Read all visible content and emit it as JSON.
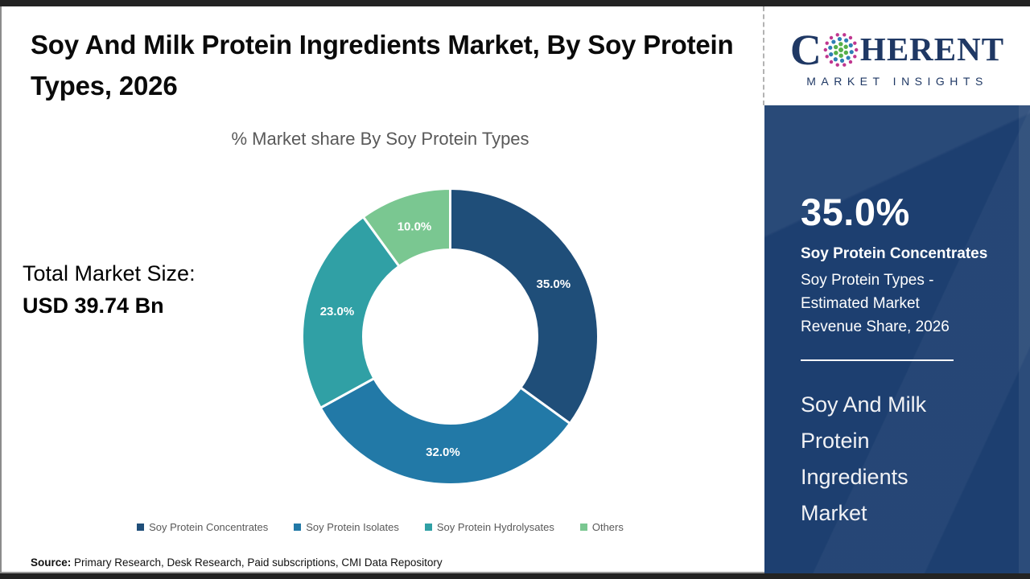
{
  "header": {
    "title": "Soy And Milk Protein Ingredients Market, By Soy Protein Types, 2026"
  },
  "logo": {
    "name": "Coherent Market Insights",
    "word_first_letter": "C",
    "word_rest": "HERENT",
    "subtitle": "MARKET INSIGHTS",
    "colors": {
      "navy": "#1F3864",
      "dot_green": "#55B04B",
      "dot_blue": "#2E7EB5",
      "dot_magenta": "#C0368F"
    }
  },
  "left_panel": {
    "total_label": "Total Market Size:",
    "total_value": "USD 39.74 Bn"
  },
  "chart_data": {
    "type": "pie",
    "subtype": "donut",
    "title": "% Market share By Soy Protein Types",
    "categories": [
      "Soy Protein Concentrates",
      "Soy Protein Isolates",
      "Soy Protein Hydrolysates",
      "Others"
    ],
    "values": [
      35.0,
      32.0,
      23.0,
      10.0
    ],
    "labels": [
      "35.0%",
      "32.0%",
      "23.0%",
      "10.0%"
    ],
    "colors": [
      "#1F4E79",
      "#2279A7",
      "#30A0A5",
      "#7AC791"
    ],
    "start_angle_deg": 0,
    "direction": "clockwise",
    "legend_position": "bottom",
    "label_color": "#ffffff"
  },
  "sidebar": {
    "bg_color": "#1D3F70",
    "stat_value": "35.0%",
    "stat_label": "Soy Protein Concentrates",
    "stat_desc": "Soy Protein Types - Estimated Market Revenue Share, 2026",
    "report_title": "Soy And Milk Protein Ingredients Market"
  },
  "footer": {
    "source_label": "Source:",
    "source_text": " Primary Research, Desk Research, Paid subscriptions, CMI Data Repository"
  }
}
